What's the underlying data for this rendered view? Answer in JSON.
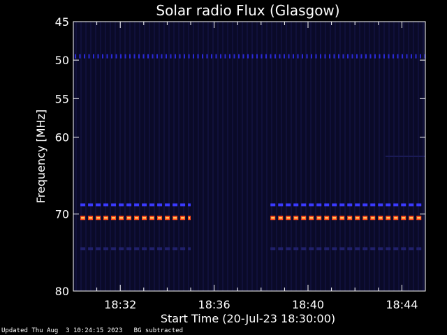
{
  "chart_data": {
    "type": "heatmap",
    "title": "Solar radio Flux (Glasgow)",
    "ylabel": "Frequency [MHz]",
    "xlabel": "Start Time (20-Jul-23 18:30:00)",
    "y_ticks": [
      45,
      50,
      55,
      60,
      70,
      80
    ],
    "y_range": [
      45,
      80
    ],
    "x_ticks": [
      "18:32",
      "18:36",
      "18:40",
      "18:44"
    ],
    "x_tick_minutes": [
      2,
      6,
      10,
      14
    ],
    "x_range_minutes": [
      0,
      15
    ],
    "signals": [
      {
        "freq_mhz": 49.5,
        "start_min": 0,
        "end_min": 15,
        "color": "#2a2ad8",
        "style": "dotted"
      },
      {
        "freq_mhz": 68.8,
        "start_min": 0.3,
        "end_min": 5,
        "color": "#3a3aff",
        "style": "dashed"
      },
      {
        "freq_mhz": 68.8,
        "start_min": 8.4,
        "end_min": 15,
        "color": "#3a3aff",
        "style": "dashed"
      },
      {
        "freq_mhz": 70.5,
        "start_min": 0.3,
        "end_min": 5,
        "color": "#ff4a1a",
        "style": "dashed-hot"
      },
      {
        "freq_mhz": 70.5,
        "start_min": 8.4,
        "end_min": 15,
        "color": "#ff4a1a",
        "style": "dashed-hot"
      },
      {
        "freq_mhz": 74.5,
        "start_min": 0.3,
        "end_min": 5,
        "color": "#20206a",
        "style": "dashed"
      },
      {
        "freq_mhz": 74.5,
        "start_min": 8.4,
        "end_min": 15,
        "color": "#20206a",
        "style": "dashed"
      },
      {
        "freq_mhz": 62.5,
        "start_min": 13.3,
        "end_min": 15,
        "color": "#1a1a55",
        "style": "solid"
      }
    ],
    "background_color": "#0a0a28"
  },
  "footer": {
    "updated": "Updated Thu Aug  3 10:24:15 2023   BG subtracted"
  }
}
